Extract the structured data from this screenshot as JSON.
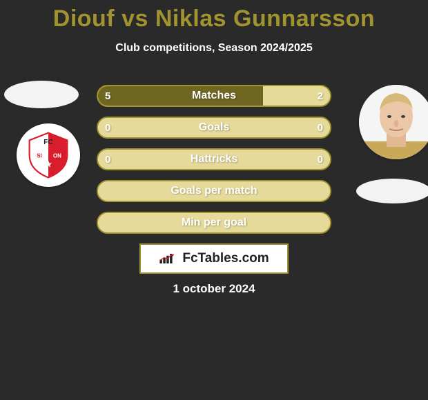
{
  "title": "Diouf vs Niklas Gunnarsson",
  "subtitle": "Club competitions, Season 2024/2025",
  "date": "1 october 2024",
  "brand": "FcTables.com",
  "colors": {
    "accent": "#a09330",
    "background": "#2a2a2a",
    "bar_empty": "#e5da9a",
    "bar_fill": "#6e6621",
    "text": "#ffffff"
  },
  "player_left": {
    "name": "Diouf",
    "club": "FC Sion",
    "club_color": "#d81e2c"
  },
  "player_right": {
    "name": "Niklas Gunnarsson"
  },
  "rows": [
    {
      "label": "Matches",
      "left_value": "5",
      "right_value": "2",
      "left_pct": 71,
      "right_pct": 29,
      "left_color": "#6e6621",
      "right_color": "#e5da9a",
      "border_color": "#a09330"
    },
    {
      "label": "Goals",
      "left_value": "0",
      "right_value": "0",
      "left_pct": 50,
      "right_pct": 50,
      "left_color": "#e5da9a",
      "right_color": "#e5da9a",
      "border_color": "#a09330"
    },
    {
      "label": "Hattricks",
      "left_value": "0",
      "right_value": "0",
      "left_pct": 50,
      "right_pct": 50,
      "left_color": "#e5da9a",
      "right_color": "#e5da9a",
      "border_color": "#a09330"
    },
    {
      "label": "Goals per match",
      "left_value": "",
      "right_value": "",
      "left_pct": 50,
      "right_pct": 50,
      "left_color": "#e5da9a",
      "right_color": "#e5da9a",
      "border_color": "#a09330"
    },
    {
      "label": "Min per goal",
      "left_value": "",
      "right_value": "",
      "left_pct": 50,
      "right_pct": 50,
      "left_color": "#e5da9a",
      "right_color": "#e5da9a",
      "border_color": "#a09330"
    }
  ]
}
